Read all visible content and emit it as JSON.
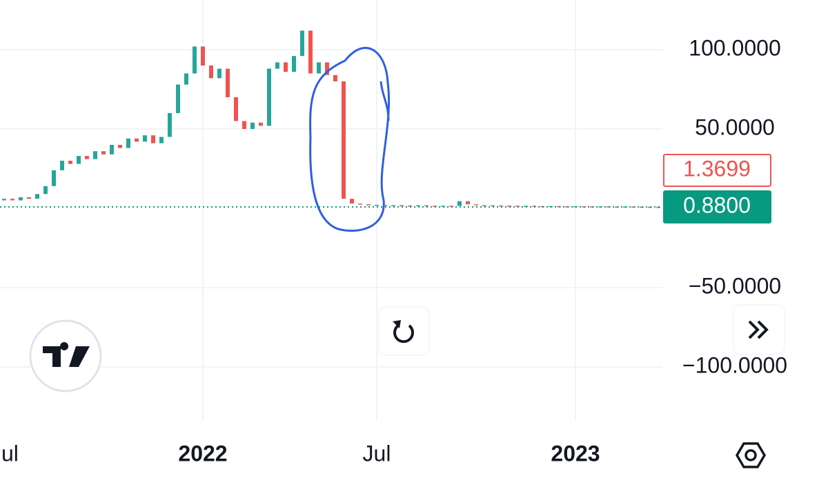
{
  "chart_data": {
    "type": "candlestick",
    "categories": [
      "Jul",
      null,
      null,
      null,
      null,
      null,
      null,
      null,
      null,
      null,
      null,
      null,
      null,
      null,
      null,
      null,
      null,
      null,
      null,
      null,
      null,
      null,
      null,
      null,
      "2022",
      null,
      null,
      null,
      null,
      null,
      null,
      null,
      null,
      null,
      null,
      null,
      null,
      null,
      null,
      null,
      null,
      null,
      null,
      null,
      null,
      "Jul",
      null,
      null,
      null,
      null,
      null,
      null,
      null,
      null,
      null,
      null,
      null,
      null,
      null,
      null,
      null,
      null,
      null,
      null,
      null,
      null,
      null,
      null,
      null,
      "2023",
      null,
      null,
      null,
      null,
      null,
      null,
      null,
      null,
      null,
      null
    ],
    "open": [
      5,
      6,
      5,
      7,
      6,
      9,
      14,
      24,
      30,
      28,
      33,
      31,
      36,
      34,
      40,
      38,
      44,
      42,
      46,
      41,
      45,
      60,
      78,
      85,
      102,
      90,
      82,
      88,
      70,
      55,
      50,
      54,
      52,
      88,
      92,
      86,
      96,
      112,
      85,
      92,
      84,
      80,
      6,
      3,
      2.5,
      2,
      2.2,
      1.9,
      2,
      1.8,
      1.7,
      1.9,
      1.6,
      1.5,
      1.6,
      1.5,
      4.5,
      2.5,
      2,
      1.9,
      1.8,
      1.7,
      1.6,
      1.5,
      1.6,
      1.4,
      1.3,
      1.4,
      1.3,
      1.2,
      1.3,
      1.2,
      1.1,
      1.2,
      1.1,
      1.0,
      1.1,
      1.0,
      0.95,
      0.9
    ],
    "close": [
      6,
      5,
      7,
      6,
      9,
      14,
      24,
      30,
      28,
      33,
      31,
      36,
      34,
      40,
      38,
      44,
      42,
      46,
      41,
      45,
      60,
      78,
      85,
      102,
      90,
      82,
      88,
      70,
      55,
      50,
      54,
      52,
      88,
      92,
      86,
      96,
      112,
      85,
      92,
      84,
      80,
      6,
      3,
      2.5,
      2,
      2.2,
      1.9,
      2,
      1.8,
      1.7,
      1.9,
      1.6,
      1.5,
      1.6,
      1.5,
      4.5,
      2.5,
      2,
      1.9,
      1.8,
      1.7,
      1.6,
      1.5,
      1.6,
      1.4,
      1.3,
      1.4,
      1.3,
      1.2,
      1.3,
      1.2,
      1.1,
      1.2,
      1.1,
      1.0,
      1.1,
      1.0,
      0.95,
      0.9,
      0.88
    ],
    "up_color": "#26a69a",
    "down_color": "#ef5350",
    "ylim": [
      -133.9,
      131.3
    ],
    "yticks": [
      {
        "value": 100,
        "label": "100.0000"
      },
      {
        "value": 50,
        "label": "50.0000"
      },
      {
        "value": -50,
        "label": "−50.0000"
      },
      {
        "value": -100,
        "label": "−100.0000"
      }
    ],
    "grid": true,
    "price_labels": [
      {
        "value": 1.3699,
        "label": "1.3699",
        "color": "#ef5350"
      },
      {
        "value": 0.88,
        "label": "0.8800",
        "color": "#089981"
      }
    ]
  }
}
